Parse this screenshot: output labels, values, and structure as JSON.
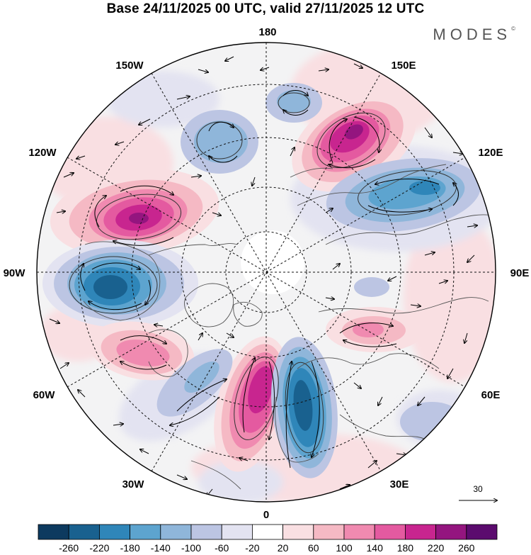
{
  "header": {
    "title": "Base 24/11/2025 00 UTC, valid 27/11/2025 12 UTC",
    "brand": "MODES",
    "brand_mark": "©"
  },
  "map": {
    "projection": "north-polar-stereographic",
    "longitude_labels": [
      {
        "id": "lon-180",
        "text": "180"
      },
      {
        "id": "lon-150e",
        "text": "150E"
      },
      {
        "id": "lon-120e",
        "text": "120E"
      },
      {
        "id": "lon-90e",
        "text": "90E"
      },
      {
        "id": "lon-60e",
        "text": "60E"
      },
      {
        "id": "lon-30e",
        "text": "30E"
      },
      {
        "id": "lon-0",
        "text": "0"
      },
      {
        "id": "lon-30w",
        "text": "30W"
      },
      {
        "id": "lon-60w",
        "text": "60W"
      },
      {
        "id": "lon-90w",
        "text": "90W"
      },
      {
        "id": "lon-120w",
        "text": "120W"
      },
      {
        "id": "lon-150w",
        "text": "150W"
      }
    ],
    "reference_vector": "30"
  },
  "colorbar": {
    "colors": [
      "#0d3a5f",
      "#19618f",
      "#2f86b9",
      "#5da4cf",
      "#8fb6da",
      "#bcc5e3",
      "#e3e3f1",
      "#ffffff",
      "#f9dfe2",
      "#f5b9c4",
      "#f08ab0",
      "#e45aa0",
      "#c8258f",
      "#94157f",
      "#5b0b6e"
    ],
    "ticks": [
      "-260",
      "-220",
      "-180",
      "-140",
      "-100",
      "-60",
      "-20",
      "20",
      "60",
      "100",
      "140",
      "180",
      "220",
      "260"
    ]
  },
  "anomalies": [
    {
      "name": "anomaly-west-canada-high",
      "value": 250
    },
    {
      "name": "anomaly-hudson-low",
      "value": -230
    },
    {
      "name": "anomaly-east-siberia-high",
      "value": 240
    },
    {
      "name": "anomaly-siberia-low",
      "value": -150
    },
    {
      "name": "anomaly-north-atlantic-high",
      "value": 240
    },
    {
      "name": "anomaly-scandinavia-low",
      "value": -230
    },
    {
      "name": "anomaly-greenland-high",
      "value": 150
    },
    {
      "name": "anomaly-aleutian-low",
      "value": -110
    }
  ]
}
